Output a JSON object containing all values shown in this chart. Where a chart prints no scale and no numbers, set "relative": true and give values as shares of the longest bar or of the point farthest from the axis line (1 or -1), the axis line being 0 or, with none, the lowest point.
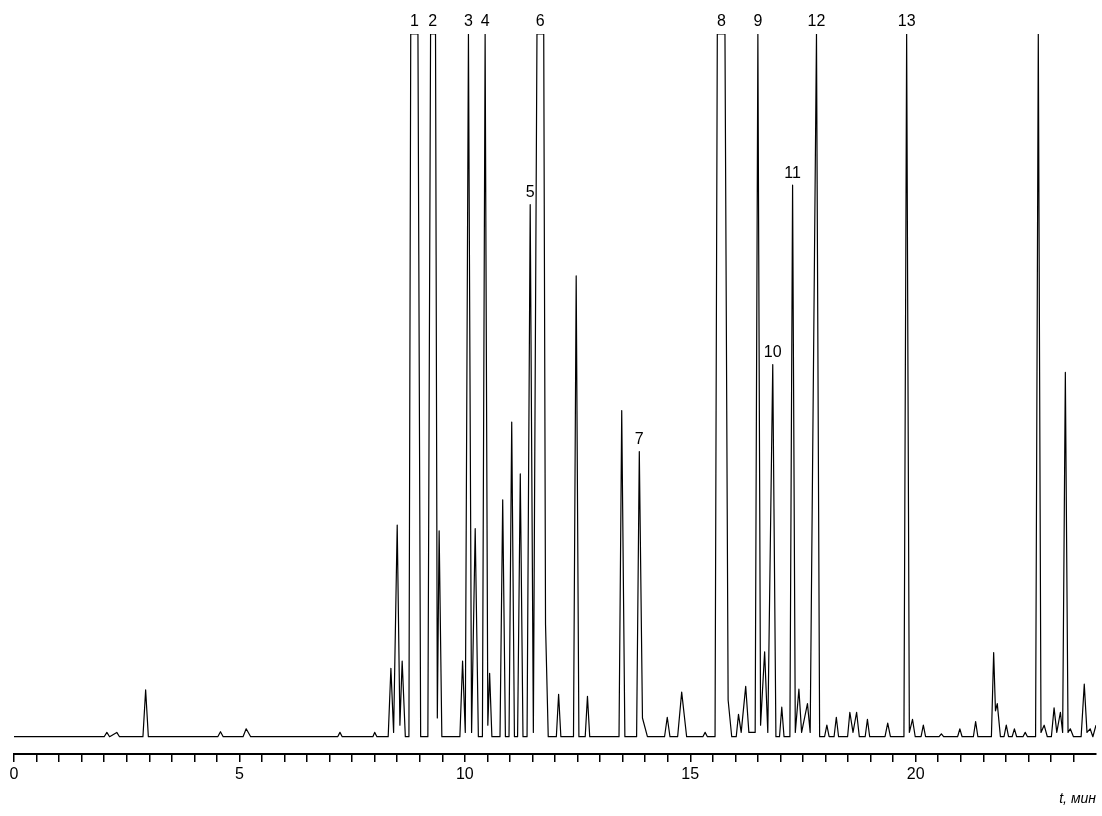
{
  "chart_data": {
    "type": "line",
    "relative": true,
    "xlabel": "t, мин",
    "color": "#000000",
    "marker": "none",
    "line_style": "solid",
    "xlim": [
      0,
      24
    ],
    "xticks": [
      0,
      {
        "value": 0.5,
        "label": null
      },
      {
        "value": 1,
        "label": null
      },
      {
        "value": 1.5,
        "label": null
      },
      {
        "value": 2,
        "label": null
      },
      {
        "value": 2.5,
        "label": null
      },
      {
        "value": 3,
        "label": null
      },
      {
        "value": 3.5,
        "label": null
      },
      {
        "value": 4,
        "label": null
      },
      {
        "value": 4.5,
        "label": null
      },
      5,
      {
        "value": 5.5,
        "label": null
      },
      {
        "value": 6,
        "label": null
      },
      {
        "value": 6.5,
        "label": null
      },
      {
        "value": 7,
        "label": null
      },
      {
        "value": 7.5,
        "label": null
      },
      {
        "value": 8,
        "label": null
      },
      {
        "value": 8.5,
        "label": null
      },
      {
        "value": 9,
        "label": null
      },
      {
        "value": 9.5,
        "label": null
      },
      10,
      {
        "value": 10.5,
        "label": null
      },
      {
        "value": 11,
        "label": null
      },
      {
        "value": 11.5,
        "label": null
      },
      {
        "value": 12,
        "label": null
      },
      {
        "value": 12.5,
        "label": null
      },
      {
        "value": 13,
        "label": null
      },
      {
        "value": 13.5,
        "label": null
      },
      {
        "value": 14,
        "label": null
      },
      {
        "value": 14.5,
        "label": null
      },
      15,
      {
        "value": 15.5,
        "label": null
      },
      {
        "value": 16,
        "label": null
      },
      {
        "value": 16.5,
        "label": null
      },
      {
        "value": 17,
        "label": null
      },
      {
        "value": 17.5,
        "label": null
      },
      {
        "value": 18,
        "label": null
      },
      {
        "value": 18.5,
        "label": null
      },
      {
        "value": 19,
        "label": null
      },
      {
        "value": 19.5,
        "label": null
      },
      20,
      {
        "value": 20.5,
        "label": null
      },
      {
        "value": 21,
        "label": null
      },
      {
        "value": 21.5,
        "label": null
      },
      {
        "value": 22,
        "label": null
      },
      {
        "value": 22.5,
        "label": null
      },
      {
        "value": 23,
        "label": null
      },
      {
        "value": 23.5,
        "label": null
      }
    ],
    "x": [
      0,
      2.0,
      2.06,
      2.12,
      2.28,
      2.34,
      2.86,
      2.92,
      2.98,
      4.52,
      4.58,
      4.64,
      5.08,
      5.15,
      5.25,
      7.18,
      7.23,
      7.28,
      7.96,
      8.0,
      8.05,
      8.3,
      8.36,
      8.42,
      8.5,
      8.56,
      8.61,
      8.68,
      8.76,
      8.8,
      8.96,
      9.02,
      9.18,
      9.24,
      9.35,
      9.39,
      9.43,
      9.49,
      9.89,
      9.95,
      10.01,
      10.08,
      10.15,
      10.23,
      10.3,
      10.39,
      10.45,
      10.51,
      10.55,
      10.6,
      10.78,
      10.84,
      10.9,
      10.98,
      11.04,
      11.1,
      11.17,
      11.23,
      11.29,
      11.38,
      11.45,
      11.52,
      11.6,
      11.75,
      11.79,
      11.85,
      12.03,
      12.08,
      12.13,
      12.41,
      12.47,
      12.53,
      12.67,
      12.72,
      12.77,
      13.42,
      13.48,
      13.55,
      13.81,
      13.87,
      13.94,
      14.05,
      14.43,
      14.49,
      14.55,
      14.72,
      14.81,
      14.92,
      15.28,
      15.33,
      15.38,
      15.55,
      15.6,
      15.77,
      15.84,
      15.92,
      16.02,
      16.07,
      16.13,
      16.23,
      16.3,
      16.44,
      16.5,
      16.56,
      16.65,
      16.72,
      16.83,
      16.9,
      16.98,
      17.03,
      17.08,
      17.21,
      17.27,
      17.33,
      17.41,
      17.47,
      17.6,
      17.66,
      17.8,
      17.87,
      17.98,
      18.03,
      18.08,
      18.19,
      18.24,
      18.29,
      18.49,
      18.54,
      18.61,
      18.69,
      18.75,
      18.88,
      18.93,
      18.98,
      19.32,
      19.38,
      19.44,
      19.74,
      19.8,
      19.86,
      19.93,
      19.99,
      20.12,
      20.17,
      20.22,
      20.52,
      20.57,
      20.62,
      20.93,
      20.98,
      21.03,
      21.28,
      21.33,
      21.38,
      21.68,
      21.73,
      21.77,
      21.81,
      21.88,
      21.96,
      22.01,
      22.06,
      22.14,
      22.19,
      22.24,
      22.38,
      22.43,
      22.48,
      22.66,
      22.72,
      22.78,
      22.85,
      22.92,
      23.01,
      23.07,
      23.13,
      23.21,
      23.26,
      23.32,
      23.38,
      23.43,
      23.5,
      23.67,
      23.74,
      23.8,
      23.87,
      23.93,
      24.0
    ],
    "values": [
      0.024,
      0.024,
      0.03,
      0.024,
      0.03,
      0.024,
      0.024,
      0.089,
      0.024,
      0.024,
      0.031,
      0.024,
      0.024,
      0.035,
      0.024,
      0.024,
      0.03,
      0.024,
      0.024,
      0.03,
      0.024,
      0.024,
      0.119,
      0.03,
      0.318,
      0.04,
      0.129,
      0.024,
      0.024,
      1,
      1,
      0.024,
      0.024,
      1,
      1,
      0.05,
      0.31,
      0.024,
      0.024,
      0.129,
      0.03,
      1,
      0.03,
      0.313,
      0.024,
      0.024,
      1,
      0.04,
      0.112,
      0.024,
      0.024,
      0.353,
      0.024,
      0.024,
      0.461,
      0.024,
      0.024,
      0.389,
      0.024,
      0.024,
      0.763,
      0.03,
      1,
      1,
      0.18,
      0.024,
      0.024,
      0.083,
      0.024,
      0.024,
      0.664,
      0.024,
      0.024,
      0.08,
      0.024,
      0.024,
      0.477,
      0.024,
      0.024,
      0.42,
      0.05,
      0.024,
      0.024,
      0.051,
      0.024,
      0.024,
      0.086,
      0.024,
      0.024,
      0.03,
      0.024,
      0.024,
      1,
      1,
      0.075,
      0.024,
      0.024,
      0.055,
      0.03,
      0.094,
      0.03,
      0.03,
      1,
      0.04,
      0.142,
      0.03,
      0.541,
      0.024,
      0.024,
      0.065,
      0.024,
      0.024,
      0.79,
      0.03,
      0.09,
      0.03,
      0.07,
      0.03,
      1,
      0.024,
      0.024,
      0.04,
      0.024,
      0.024,
      0.051,
      0.024,
      0.024,
      0.058,
      0.03,
      0.058,
      0.024,
      0.024,
      0.048,
      0.024,
      0.024,
      0.043,
      0.024,
      0.024,
      1,
      0.03,
      0.048,
      0.024,
      0.024,
      0.04,
      0.024,
      0.024,
      0.028,
      0.024,
      0.024,
      0.035,
      0.024,
      0.024,
      0.045,
      0.024,
      0.024,
      0.141,
      0.06,
      0.07,
      0.024,
      0.024,
      0.04,
      0.024,
      0.024,
      0.035,
      0.024,
      0.024,
      0.03,
      0.024,
      0.024,
      1,
      0.03,
      0.04,
      0.024,
      0.024,
      0.064,
      0.03,
      0.058,
      0.03,
      0.53,
      0.03,
      0.035,
      0.024,
      0.024,
      0.097,
      0.03,
      0.035,
      0.024,
      0.04
    ],
    "annotations": [
      {
        "text": "1",
        "x": 8.88,
        "y": 1
      },
      {
        "text": "2",
        "x": 9.29,
        "y": 1
      },
      {
        "text": "3",
        "x": 10.08,
        "y": 1
      },
      {
        "text": "4",
        "x": 10.45,
        "y": 1
      },
      {
        "text": "5",
        "x": 11.45,
        "y": 0.763
      },
      {
        "text": "6",
        "x": 11.67,
        "y": 1
      },
      {
        "text": "7",
        "x": 13.87,
        "y": 0.42
      },
      {
        "text": "8",
        "x": 15.69,
        "y": 1
      },
      {
        "text": "9",
        "x": 16.5,
        "y": 1
      },
      {
        "text": "10",
        "x": 16.83,
        "y": 0.541
      },
      {
        "text": "11",
        "x": 17.27,
        "y": 0.79
      },
      {
        "text": "12",
        "x": 17.8,
        "y": 1
      },
      {
        "text": "13",
        "x": 19.8,
        "y": 1
      }
    ]
  }
}
